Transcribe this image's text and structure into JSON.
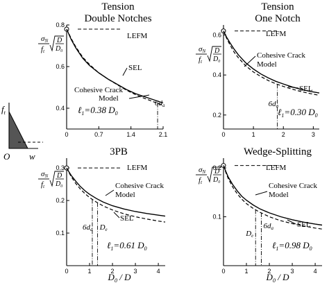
{
  "figure": {
    "inset": {
      "ft": "f",
      "ft_sub": "t",
      "origin": "O",
      "w": "w"
    },
    "xlabel": {
      "D0": "D",
      "D0_sub": "0",
      "slash": " / ",
      "D": "D"
    }
  },
  "chart_data": [
    {
      "type": "line",
      "title": "Tension\nDouble Notches",
      "ylabel": "σN/ft·√(D/D0)",
      "xlim": [
        0,
        2.1
      ],
      "ylim": [
        0.3,
        0.8
      ],
      "xticks": [
        "0",
        "0.7",
        "1.4",
        "2.1"
      ],
      "yticks": [
        "0.4",
        "0.6",
        "0.8"
      ],
      "series": [
        {
          "name": "LEFM",
          "type": "hline",
          "y": 0.78
        },
        {
          "name": "Cohesive Crack Model",
          "style": "solid",
          "x": [
            0,
            0.1,
            0.2,
            0.35,
            0.5,
            0.7,
            0.9,
            1.1,
            1.3,
            1.5,
            1.7,
            1.9,
            2.1
          ],
          "y": [
            0.78,
            0.73,
            0.69,
            0.64,
            0.605,
            0.57,
            0.54,
            0.515,
            0.49,
            0.47,
            0.455,
            0.44,
            0.425
          ]
        },
        {
          "name": "SEL",
          "style": "dashed",
          "x": [
            0,
            0.1,
            0.2,
            0.35,
            0.5,
            0.7,
            0.9,
            1.1,
            1.3,
            1.5,
            1.7,
            1.9,
            2.1
          ],
          "y": [
            0.78,
            0.735,
            0.695,
            0.645,
            0.61,
            0.57,
            0.54,
            0.513,
            0.487,
            0.465,
            0.447,
            0.43,
            0.415
          ]
        }
      ],
      "markers": [
        {
          "label": "6d",
          "sub": "a",
          "x": 1.98
        }
      ],
      "annotations": [
        {
          "text": "ℓ",
          "sub": "1",
          "rest": "=0.38 D",
          "rest_sub": "0"
        }
      ]
    },
    {
      "type": "line",
      "title": "Tension\nOne Notch",
      "ylabel": "σN/ft·√(D/D0)",
      "xlim": [
        0,
        3.2
      ],
      "ylim": [
        0.13,
        0.65
      ],
      "xticks": [
        "0",
        "1",
        "2",
        "3"
      ],
      "yticks": [
        "0.2",
        "0.4",
        "0.6"
      ],
      "series": [
        {
          "name": "LEFM",
          "type": "hline",
          "y": 0.62
        },
        {
          "name": "Cohesive Crack Model",
          "style": "solid",
          "x": [
            0,
            0.1,
            0.2,
            0.35,
            0.5,
            0.75,
            1,
            1.25,
            1.5,
            1.75,
            2,
            2.3,
            2.6,
            2.9,
            3.2
          ],
          "y": [
            0.62,
            0.59,
            0.565,
            0.53,
            0.5,
            0.46,
            0.43,
            0.405,
            0.385,
            0.368,
            0.355,
            0.34,
            0.328,
            0.318,
            0.31
          ]
        },
        {
          "name": "SEL",
          "style": "dashed",
          "x": [
            0,
            0.1,
            0.2,
            0.35,
            0.5,
            0.75,
            1,
            1.25,
            1.5,
            1.75,
            2,
            2.3,
            2.6,
            2.9,
            3.2
          ],
          "y": [
            0.62,
            0.585,
            0.555,
            0.515,
            0.485,
            0.445,
            0.415,
            0.392,
            0.372,
            0.356,
            0.343,
            0.329,
            0.317,
            0.307,
            0.298
          ]
        }
      ],
      "markers": [
        {
          "label": "6d",
          "sub": "a",
          "x": 1.8
        }
      ],
      "annotations": [
        {
          "text": "ℓ",
          "sub": "1",
          "rest": "=0.30 D",
          "rest_sub": "0"
        }
      ]
    },
    {
      "type": "line",
      "title": "3PB",
      "ylabel": "σN/ft·√(D/D0)",
      "xlim": [
        0,
        4.3
      ],
      "ylim": [
        0,
        0.33
      ],
      "xticks": [
        "0",
        "1",
        "2",
        "3",
        "4"
      ],
      "yticks": [
        "0.1",
        "0.2",
        "0.3"
      ],
      "series": [
        {
          "name": "LEFM",
          "type": "hline",
          "y": 0.3
        },
        {
          "name": "Cohesive Crack Model",
          "style": "solid",
          "x": [
            0,
            0.1,
            0.2,
            0.4,
            0.6,
            0.8,
            1,
            1.3,
            1.6,
            2,
            2.5,
            3,
            3.5,
            4,
            4.3
          ],
          "y": [
            0.3,
            0.288,
            0.277,
            0.259,
            0.243,
            0.23,
            0.219,
            0.206,
            0.195,
            0.184,
            0.174,
            0.166,
            0.16,
            0.155,
            0.152
          ]
        },
        {
          "name": "SEL",
          "style": "dashed",
          "x": [
            0,
            0.1,
            0.2,
            0.4,
            0.6,
            0.8,
            1,
            1.3,
            1.6,
            2,
            2.5,
            3,
            3.5,
            4,
            4.3
          ],
          "y": [
            0.3,
            0.286,
            0.273,
            0.252,
            0.235,
            0.221,
            0.209,
            0.195,
            0.183,
            0.171,
            0.159,
            0.15,
            0.143,
            0.137,
            0.134
          ]
        }
      ],
      "markers": [
        {
          "label": "6d",
          "sub": "a",
          "x": 1.12
        },
        {
          "label": "D",
          "sub": "e",
          "x": 1.35
        }
      ],
      "annotations": [
        {
          "text": "ℓ",
          "sub": "1",
          "rest": "=0.61 D",
          "rest_sub": "0"
        }
      ]
    },
    {
      "type": "line",
      "title": "Wedge-Splitting",
      "ylabel": "σN/ft·√(D/D0)",
      "xlim": [
        0,
        4.3
      ],
      "ylim": [
        0,
        0.22
      ],
      "xticks": [
        "0",
        "1",
        "2",
        "3",
        "4"
      ],
      "yticks": [
        "0.1",
        "0.2"
      ],
      "series": [
        {
          "name": "LEFM",
          "type": "hline",
          "y": 0.205
        },
        {
          "name": "Cohesive Crack Model",
          "style": "solid",
          "x": [
            0,
            0.1,
            0.2,
            0.4,
            0.6,
            0.8,
            1,
            1.3,
            1.6,
            2,
            2.5,
            3,
            3.5,
            4,
            4.3
          ],
          "y": [
            0.205,
            0.193,
            0.182,
            0.166,
            0.153,
            0.142,
            0.134,
            0.124,
            0.116,
            0.108,
            0.1,
            0.094,
            0.089,
            0.085,
            0.083
          ]
        },
        {
          "name": "SEL",
          "style": "dashed",
          "x": [
            0,
            0.1,
            0.2,
            0.4,
            0.6,
            0.8,
            1,
            1.3,
            1.6,
            2,
            2.5,
            3,
            3.5,
            4,
            4.3
          ],
          "y": [
            0.205,
            0.191,
            0.179,
            0.161,
            0.147,
            0.136,
            0.127,
            0.117,
            0.109,
            0.1,
            0.092,
            0.086,
            0.081,
            0.077,
            0.075
          ]
        }
      ],
      "markers": [
        {
          "label": "D",
          "sub": "e",
          "x": 1.4
        },
        {
          "label": "6d",
          "sub": "a",
          "x": 1.65
        }
      ],
      "annotations": [
        {
          "text": "ℓ",
          "sub": "1",
          "rest": "=0.98 D",
          "rest_sub": "0"
        }
      ]
    }
  ]
}
